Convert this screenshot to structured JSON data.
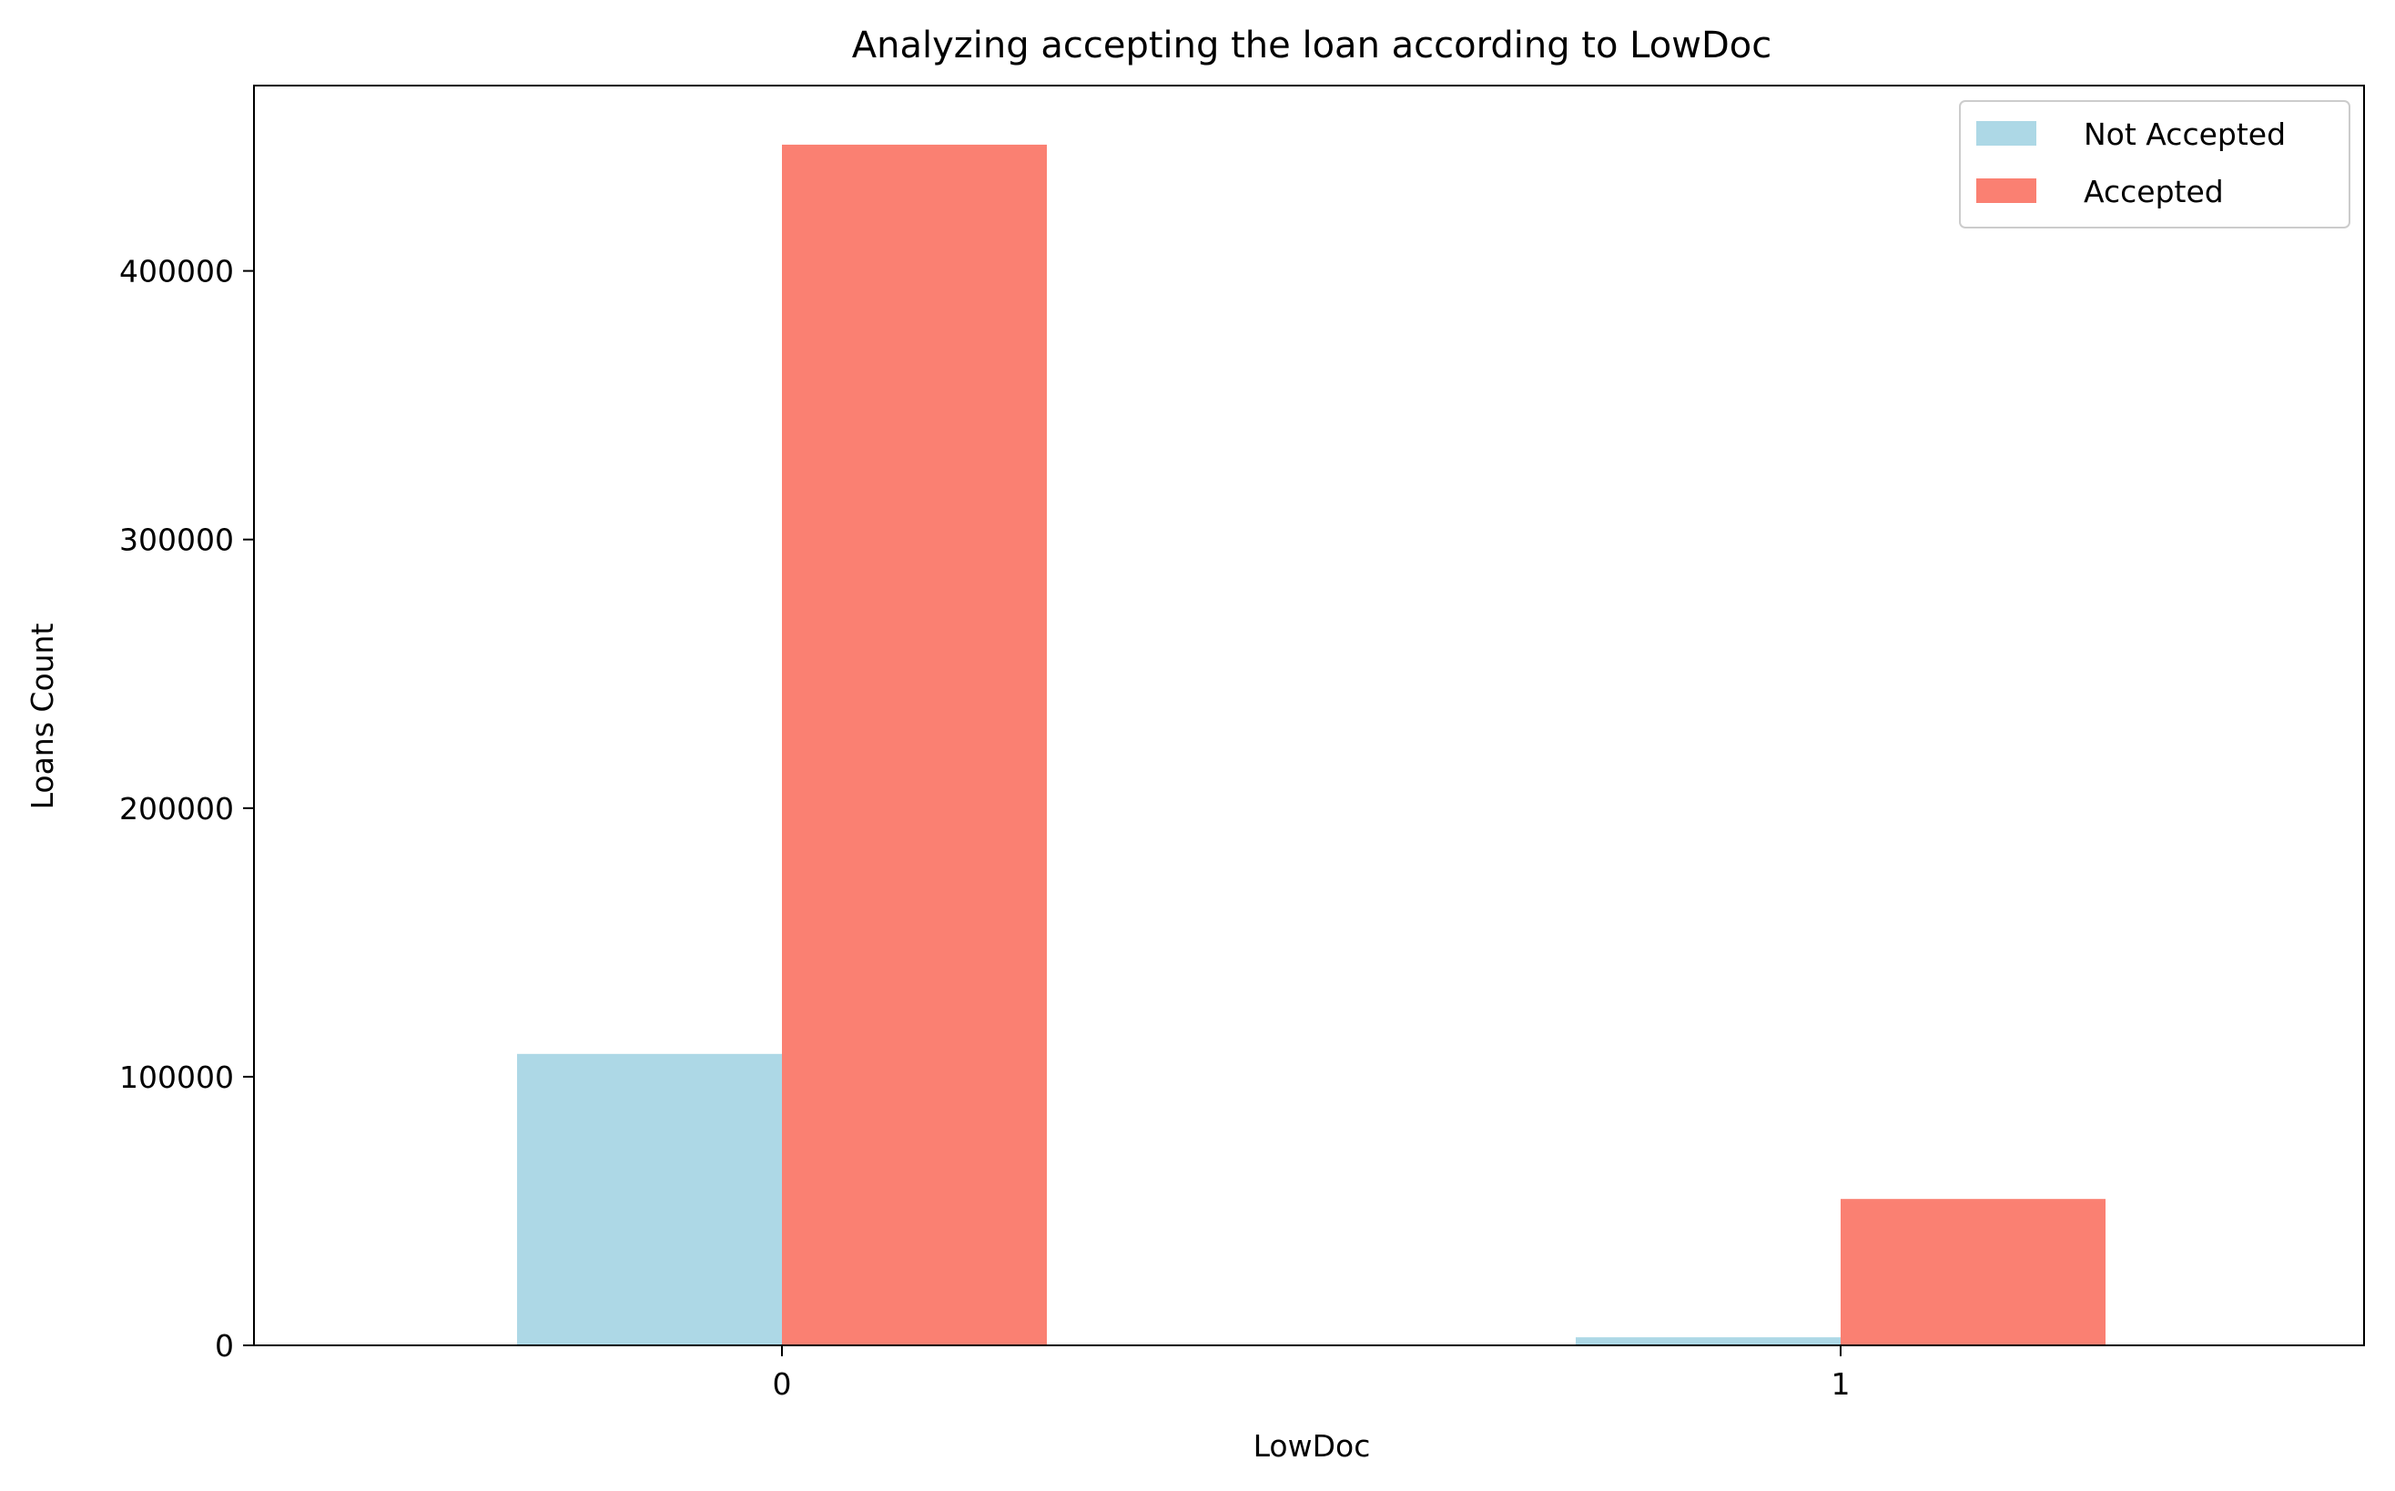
{
  "chart_data": {
    "type": "bar",
    "title": "Analyzing accepting the loan according to LowDoc",
    "xlabel": "LowDoc",
    "ylabel": "Loans Count",
    "categories": [
      "0",
      "1"
    ],
    "series": [
      {
        "name": "Not Accepted",
        "color": "#add8e6",
        "values": [
          108500,
          3000
        ]
      },
      {
        "name": "Accepted",
        "color": "#fa8072",
        "values": [
          447000,
          54500
        ]
      }
    ],
    "ylim": [
      0,
      469000
    ],
    "yticks": [
      0,
      100000,
      200000,
      300000,
      400000
    ],
    "ytick_labels": [
      "0",
      "100000",
      "200000",
      "300000",
      "400000"
    ],
    "grid": false,
    "legend_position": "top-right"
  }
}
